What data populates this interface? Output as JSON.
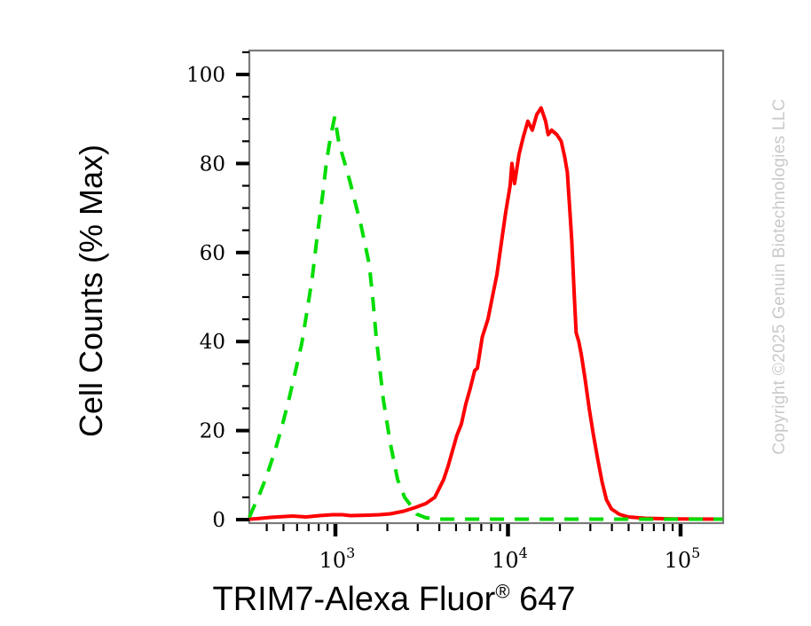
{
  "labels": {
    "ylabel": "Cell Counts (% Max)",
    "xlabel_main": "TRIM7-Alexa Fluor",
    "xlabel_reg": "®",
    "xlabel_suffix": " 647"
  },
  "watermark": {
    "text": "Copyright ©2025 Genuin Biotechnologies LLC",
    "color": "#c9c9c9"
  },
  "chart_data": {
    "type": "line",
    "subtype": "flow-cytometry-histogram-overlay",
    "title": "",
    "xlabel": "TRIM7-Alexa Fluor® 647",
    "ylabel": "Cell Counts (% Max)",
    "x_scale": "log10",
    "x_range": [
      316,
      176000
    ],
    "y_range": [
      0,
      105
    ],
    "grid": false,
    "legend": "none",
    "x_ticks_major": [
      1000,
      10000,
      100000
    ],
    "x_tick_labels": [
      {
        "base": "10",
        "exp": "3"
      },
      {
        "base": "10",
        "exp": "4"
      },
      {
        "base": "10",
        "exp": "5"
      }
    ],
    "x_ticks_minor": [
      400,
      500,
      600,
      700,
      800,
      900,
      2000,
      3000,
      4000,
      5000,
      6000,
      7000,
      8000,
      9000,
      20000,
      30000,
      40000,
      50000,
      60000,
      70000,
      80000,
      90000
    ],
    "y_ticks_major": [
      0,
      20,
      40,
      60,
      80,
      100
    ],
    "y_minor_step": 5,
    "frame_color": "#7a7a7a",
    "tick_color": "#000000",
    "series": [
      {
        "name": "red-solid",
        "color": "#fe0000",
        "style": "solid",
        "points": [
          [
            316,
            0.1
          ],
          [
            350,
            0.2
          ],
          [
            420,
            0.5
          ],
          [
            565,
            0.8
          ],
          [
            677,
            0.6
          ],
          [
            808,
            0.9
          ],
          [
            965,
            1.1
          ],
          [
            1100,
            1.1
          ],
          [
            1223,
            0.9
          ],
          [
            1550,
            1.0
          ],
          [
            1800,
            1.1
          ],
          [
            2084,
            1.3
          ],
          [
            2490,
            1.9
          ],
          [
            2900,
            2.7
          ],
          [
            3345,
            3.6
          ],
          [
            3766,
            5.0
          ],
          [
            4240,
            9.0
          ],
          [
            4496,
            12
          ],
          [
            5061,
            19
          ],
          [
            5370,
            21.5
          ],
          [
            5697,
            26
          ],
          [
            6044,
            29.5
          ],
          [
            6412,
            33.5
          ],
          [
            6650,
            34
          ],
          [
            7097,
            41
          ],
          [
            7657,
            45
          ],
          [
            8120,
            50
          ],
          [
            8620,
            55
          ],
          [
            9140,
            62
          ],
          [
            9700,
            69
          ],
          [
            10290,
            75
          ],
          [
            10540,
            80
          ],
          [
            10910,
            75.5
          ],
          [
            11580,
            82
          ],
          [
            12280,
            86
          ],
          [
            13030,
            89.5
          ],
          [
            13830,
            87.5
          ],
          [
            14670,
            91
          ],
          [
            15560,
            92.5
          ],
          [
            16510,
            89.5
          ],
          [
            17100,
            86.5
          ],
          [
            17910,
            87.5
          ],
          [
            19180,
            86.5
          ],
          [
            20350,
            85
          ],
          [
            21320,
            81.5
          ],
          [
            22070,
            78
          ],
          [
            23410,
            63
          ],
          [
            24250,
            50
          ],
          [
            24830,
            42
          ],
          [
            25720,
            40
          ],
          [
            26630,
            37
          ],
          [
            27890,
            32
          ],
          [
            29540,
            25
          ],
          [
            31280,
            19
          ],
          [
            33130,
            13.5
          ],
          [
            35080,
            8.5
          ],
          [
            37150,
            4.5
          ],
          [
            39760,
            2.4
          ],
          [
            44170,
            1.2
          ],
          [
            49710,
            0.6
          ],
          [
            62710,
            0.3
          ],
          [
            90000,
            0.15
          ],
          [
            176000,
            0.1
          ]
        ]
      },
      {
        "name": "green-dashed",
        "color": "#00dc00",
        "style": "dashed",
        "points": [
          [
            316,
            0.5
          ],
          [
            325,
            1.5
          ],
          [
            366,
            6
          ],
          [
            397,
            9.5
          ],
          [
            447,
            15.5
          ],
          [
            491,
            21
          ],
          [
            534,
            26.5
          ],
          [
            580,
            32.5
          ],
          [
            638,
            39.5
          ],
          [
            693,
            48
          ],
          [
            735,
            54.5
          ],
          [
            789,
            64.5
          ],
          [
            847,
            73.5
          ],
          [
            888,
            80.5
          ],
          [
            932,
            85.5
          ],
          [
            990,
            90.5
          ],
          [
            1048,
            84.5
          ],
          [
            1126,
            80.5
          ],
          [
            1223,
            75.5
          ],
          [
            1297,
            71.5
          ],
          [
            1410,
            66
          ],
          [
            1568,
            57.5
          ],
          [
            1644,
            50
          ],
          [
            1724,
            41
          ],
          [
            1895,
            27
          ],
          [
            2083,
            17
          ],
          [
            2293,
            9
          ],
          [
            2518,
            5
          ],
          [
            2754,
            3
          ],
          [
            2972,
            1.2
          ],
          [
            3345,
            0.4
          ],
          [
            4000,
            0.1
          ],
          [
            176000,
            0.1
          ]
        ]
      }
    ]
  }
}
